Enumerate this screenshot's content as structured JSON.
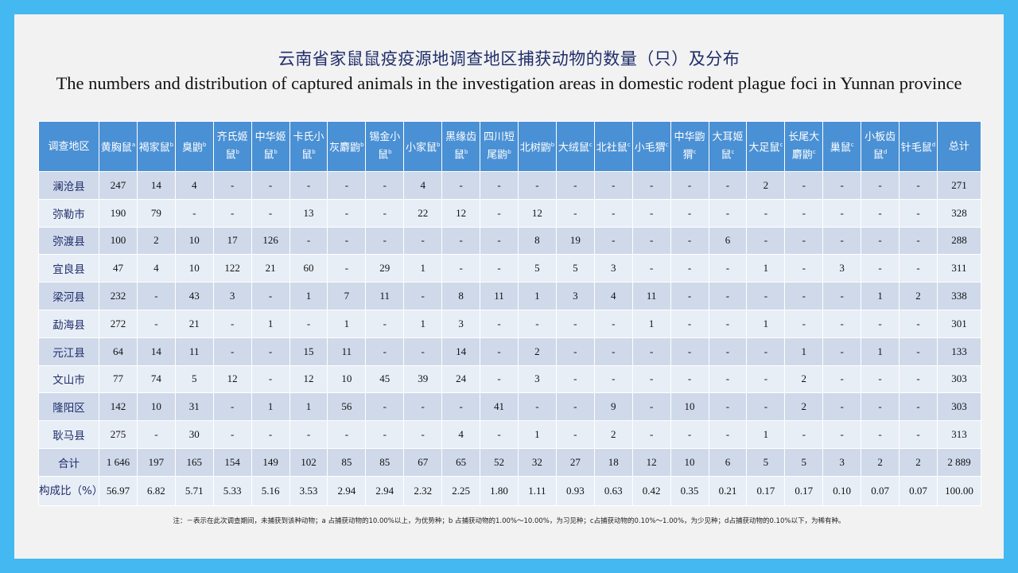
{
  "title_cn": "云南省家鼠鼠疫疫源地调查地区捕获动物的数量（只）及分布",
  "title_en": "The numbers and distribution of captured animals in the investigation areas in domestic rodent plague foci in Yunnan province",
  "table": {
    "corner_header": "调查地区",
    "total_header": "总计",
    "species": [
      {
        "name": "黄胸鼠",
        "sup": "a"
      },
      {
        "name": "褐家鼠",
        "sup": "b"
      },
      {
        "name": "臭鼩",
        "sup": "b"
      },
      {
        "name": "齐氏姬鼠",
        "sup": "b"
      },
      {
        "name": "中华姬鼠",
        "sup": "b"
      },
      {
        "name": "卡氏小鼠",
        "sup": "b"
      },
      {
        "name": "灰麝鼩",
        "sup": "b"
      },
      {
        "name": "锡金小鼠",
        "sup": "b"
      },
      {
        "name": "小家鼠",
        "sup": "b"
      },
      {
        "name": "黑缘齿鼠",
        "sup": "b"
      },
      {
        "name": "四川短尾鼩",
        "sup": "b"
      },
      {
        "name": "北树鼩",
        "sup": "b"
      },
      {
        "name": "大绒鼠",
        "sup": "c"
      },
      {
        "name": "北社鼠",
        "sup": "c"
      },
      {
        "name": "小毛猬",
        "sup": "c"
      },
      {
        "name": "中华鼩猬",
        "sup": "c"
      },
      {
        "name": "大耳姬鼠",
        "sup": "c"
      },
      {
        "name": "大足鼠",
        "sup": "c"
      },
      {
        "name": "长尾大麝鼩",
        "sup": "c"
      },
      {
        "name": "巢鼠",
        "sup": "c"
      },
      {
        "name": "小板齿鼠",
        "sup": "d"
      },
      {
        "name": "针毛鼠",
        "sup": "d"
      }
    ],
    "rows": [
      {
        "region": "澜沧县",
        "values": [
          "247",
          "14",
          "4",
          "-",
          "-",
          "-",
          "-",
          "-",
          "4",
          "-",
          "-",
          "-",
          "-",
          "-",
          "-",
          "-",
          "-",
          "2",
          "-",
          "-",
          "-",
          "-"
        ],
        "total": "271"
      },
      {
        "region": "弥勒市",
        "values": [
          "190",
          "79",
          "-",
          "-",
          "-",
          "13",
          "-",
          "-",
          "22",
          "12",
          "-",
          "12",
          "-",
          "-",
          "-",
          "-",
          "-",
          "-",
          "-",
          "-",
          "-",
          "-"
        ],
        "total": "328"
      },
      {
        "region": "弥渡县",
        "values": [
          "100",
          "2",
          "10",
          "17",
          "126",
          "-",
          "-",
          "-",
          "-",
          "-",
          "-",
          "8",
          "19",
          "-",
          "-",
          "-",
          "6",
          "-",
          "-",
          "-",
          "-",
          "-"
        ],
        "total": "288"
      },
      {
        "region": "宜良县",
        "values": [
          "47",
          "4",
          "10",
          "122",
          "21",
          "60",
          "-",
          "29",
          "1",
          "-",
          "-",
          "5",
          "5",
          "3",
          "-",
          "-",
          "-",
          "1",
          "-",
          "3",
          "-",
          "-"
        ],
        "total": "311"
      },
      {
        "region": "梁河县",
        "values": [
          "232",
          "-",
          "43",
          "3",
          "-",
          "1",
          "7",
          "11",
          "-",
          "8",
          "11",
          "1",
          "3",
          "4",
          "11",
          "-",
          "-",
          "-",
          "-",
          "-",
          "1",
          "2"
        ],
        "total": "338"
      },
      {
        "region": "勐海县",
        "values": [
          "272",
          "-",
          "21",
          "-",
          "1",
          "-",
          "1",
          "-",
          "1",
          "3",
          "-",
          "-",
          "-",
          "-",
          "1",
          "-",
          "-",
          "1",
          "-",
          "-",
          "-",
          "-"
        ],
        "total": "301"
      },
      {
        "region": "元江县",
        "values": [
          "64",
          "14",
          "11",
          "-",
          "-",
          "15",
          "11",
          "-",
          "-",
          "14",
          "-",
          "2",
          "-",
          "-",
          "-",
          "-",
          "-",
          "-",
          "1",
          "-",
          "1",
          "-"
        ],
        "total": "133"
      },
      {
        "region": "文山市",
        "values": [
          "77",
          "74",
          "5",
          "12",
          "-",
          "12",
          "10",
          "45",
          "39",
          "24",
          "-",
          "3",
          "-",
          "-",
          "-",
          "-",
          "-",
          "-",
          "2",
          "-",
          "-",
          "-"
        ],
        "total": "303"
      },
      {
        "region": "隆阳区",
        "values": [
          "142",
          "10",
          "31",
          "-",
          "1",
          "1",
          "56",
          "-",
          "-",
          "-",
          "41",
          "-",
          "-",
          "9",
          "-",
          "10",
          "-",
          "-",
          "2",
          "-",
          "-",
          "-"
        ],
        "total": "303"
      },
      {
        "region": "耿马县",
        "values": [
          "275",
          "-",
          "30",
          "-",
          "-",
          "-",
          "-",
          "-",
          "-",
          "4",
          "-",
          "1",
          "-",
          "2",
          "-",
          "-",
          "-",
          "1",
          "-",
          "-",
          "-",
          "-"
        ],
        "total": "313"
      },
      {
        "region": "合计",
        "values": [
          "1 646",
          "197",
          "165",
          "154",
          "149",
          "102",
          "85",
          "85",
          "67",
          "65",
          "52",
          "32",
          "27",
          "18",
          "12",
          "10",
          "6",
          "5",
          "5",
          "3",
          "2",
          "2"
        ],
        "total": "2 889"
      },
      {
        "region": "构成比（%）",
        "values": [
          "56.97",
          "6.82",
          "5.71",
          "5.33",
          "5.16",
          "3.53",
          "2.94",
          "2.94",
          "2.32",
          "2.25",
          "1.80",
          "1.11",
          "0.93",
          "0.63",
          "0.42",
          "0.35",
          "0.21",
          "0.17",
          "0.17",
          "0.10",
          "0.07",
          "0.07"
        ],
        "total": "100.00"
      }
    ]
  },
  "note": "注：－表示在此次调查期间，未捕获到该种动物；a 占捕获动物的10.00%以上，为优势种；b 占捕获动物的1.00%～10.00%，为习见种；c占捕获动物的0.10%～1.00%，为少见种；d占捕获动物的0.10%以下，为稀有种。",
  "colors": {
    "background": "#44b8f0",
    "slide": "#f2f2f2",
    "header_fill": "#4a90d4",
    "row_band_dark": "#cfd9ea",
    "row_band_light": "#e8eef6"
  }
}
